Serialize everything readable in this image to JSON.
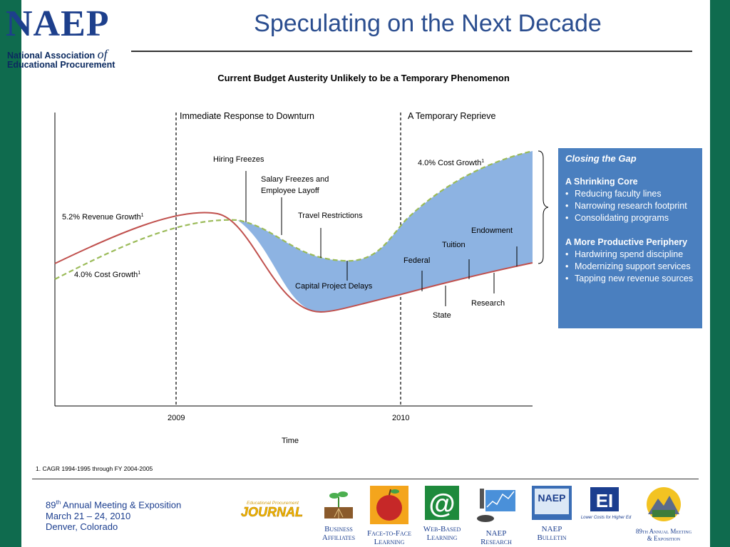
{
  "logo": {
    "word": "NAEP",
    "line1": "National Association ",
    "of": "of",
    "line2": "Educational Procurement"
  },
  "title": "Speculating on the Next Decade",
  "chart_title": "Current Budget Austerity Unlikely to be a Temporary Phenomenon",
  "diagram": {
    "phases": [
      "Immediate Response to Downturn",
      "A Temporary Reprieve"
    ],
    "revenue_label": "5.2% Revenue Growth",
    "cost_label_left": "4.0% Cost Growth",
    "cost_label_right": "4.0% Cost Growth",
    "superscript": "1",
    "cost_drivers": [
      "Hiring Freezes",
      "Salary Freezes and",
      "Employee Layoff",
      "Travel Restrictions",
      "Capital Project Delays"
    ],
    "revenue_sources": [
      "Federal",
      "State",
      "Tuition",
      "Research",
      "Endowment"
    ],
    "x_ticks": [
      "2009",
      "2010"
    ],
    "x_label": "Time"
  },
  "gap_box": {
    "title": "Closing the Gap",
    "section1": "A Shrinking Core",
    "items1": [
      "Reducing faculty lines",
      "Narrowing research footprint",
      "Consolidating programs"
    ],
    "section2": "A More Productive Periphery",
    "items2": [
      "Hardwiring spend discipline",
      "Modernizing support services",
      "Tapping new revenue sources"
    ]
  },
  "footnote": "1. CAGR 1994-1995 through FY 2004-2005",
  "meeting": {
    "num": "89",
    "sup": "th",
    "line1": " Annual Meeting & Exposition",
    "line2": "March 21 – 24, 2010",
    "line3": "Denver, Colorado"
  },
  "footer_tiles": [
    {
      "label": "Educational Procurement JOURNAL",
      "icon": "journal-logo"
    },
    {
      "label": "Business Affiliates",
      "icon": "sprout-icon"
    },
    {
      "label": "Face-to-Face Learning",
      "icon": "apple-icon"
    },
    {
      "label": "Web-Based Learning",
      "icon": "at-sign-icon"
    },
    {
      "label": "NAEP Research",
      "icon": "microscope-icon"
    },
    {
      "label": "NAEP Bulletin",
      "icon": "bulletin-icon"
    },
    {
      "label": "Lower Costs for Higher Ed",
      "icon": "ei-logo"
    },
    {
      "label": "89th Annual Meeting & Exposition",
      "icon": "mountain-icon"
    }
  ],
  "colors": {
    "brand_green": "#0f6b4e",
    "navy": "#1d3f8c",
    "box_blue": "#4a7fbf",
    "gap_fill": "#8db3e2",
    "revenue_line": "#c0504d",
    "cost_line": "#9bbb59"
  }
}
